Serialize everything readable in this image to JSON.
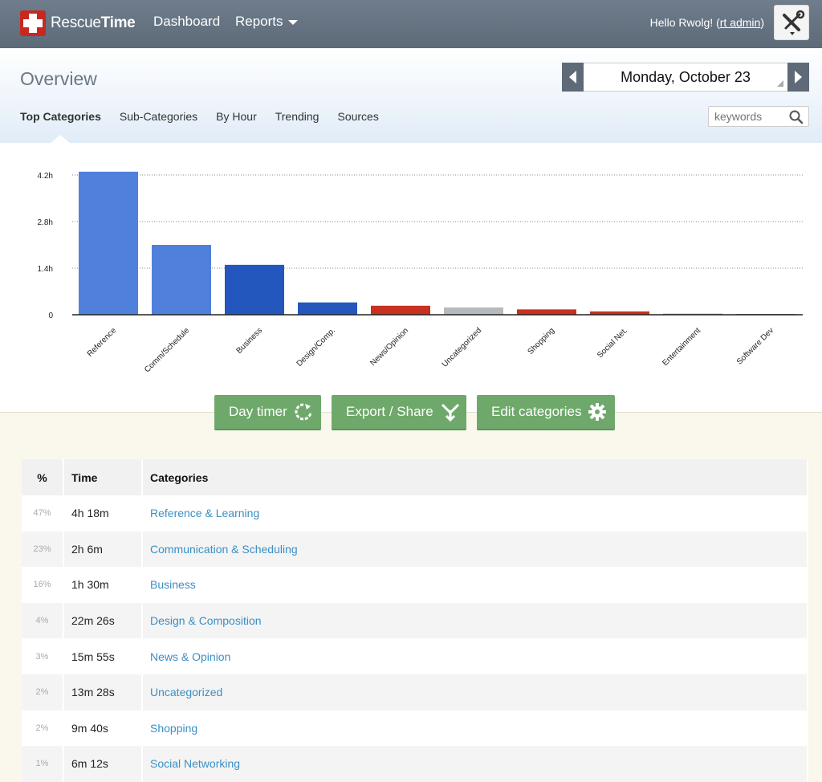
{
  "topbar": {
    "brand_light": "Rescue",
    "brand_bold": "Time",
    "nav": [
      {
        "label": "Dashboard"
      },
      {
        "label": "Reports"
      }
    ],
    "greeting": "Hello Rwolg! (",
    "admin_link": "rt admin",
    "greeting_close": ")",
    "tools_icon": "tools-icon"
  },
  "header": {
    "title": "Overview",
    "date": "Monday, October 23",
    "tabs": [
      {
        "label": "Top Categories"
      },
      {
        "label": "Sub-Categories"
      },
      {
        "label": "By Hour"
      },
      {
        "label": "Trending"
      },
      {
        "label": "Sources"
      }
    ],
    "search_placeholder": "keywords"
  },
  "chart_data": {
    "type": "bar",
    "categories": [
      "Reference",
      "Comm/Schedule",
      "Business",
      "Design/Comp.",
      "News/Opinion",
      "Uncategorized",
      "Shopping",
      "Social Net.",
      "Entertainment",
      "Software Dev"
    ],
    "values": [
      4.3,
      2.1,
      1.5,
      0.37,
      0.27,
      0.22,
      0.16,
      0.1,
      0.03,
      0.02
    ],
    "colors": [
      "#4f80dc",
      "#4f80dc",
      "#2457be",
      "#2457be",
      "#c8301f",
      "#b6babc",
      "#c8301f",
      "#c8301f",
      "#888888",
      "#888888"
    ],
    "yticks": [
      "0",
      "1.4h",
      "2.8h",
      "4.2h"
    ],
    "ytick_values": [
      0,
      1.4,
      2.8,
      4.2
    ],
    "ylim": [
      0,
      4.2
    ],
    "grid": true
  },
  "actions": [
    {
      "label": "Day timer",
      "icon": "refresh-icon"
    },
    {
      "label": "Export / Share",
      "icon": "share-icon"
    },
    {
      "label": "Edit categories",
      "icon": "gear-icon"
    }
  ],
  "table": {
    "headers": [
      "%",
      "Time",
      "Categories"
    ],
    "rows": [
      {
        "pct": "47%",
        "time": "4h 18m",
        "category": "Reference & Learning"
      },
      {
        "pct": "23%",
        "time": "2h 6m",
        "category": "Communication & Scheduling"
      },
      {
        "pct": "16%",
        "time": "1h 30m",
        "category": "Business"
      },
      {
        "pct": "4%",
        "time": "22m 26s",
        "category": "Design & Composition"
      },
      {
        "pct": "3%",
        "time": "15m 55s",
        "category": "News & Opinion"
      },
      {
        "pct": "2%",
        "time": "13m 28s",
        "category": "Uncategorized"
      },
      {
        "pct": "2%",
        "time": "9m 40s",
        "category": "Shopping"
      },
      {
        "pct": "1%",
        "time": "6m 12s",
        "category": "Social Networking"
      }
    ]
  }
}
